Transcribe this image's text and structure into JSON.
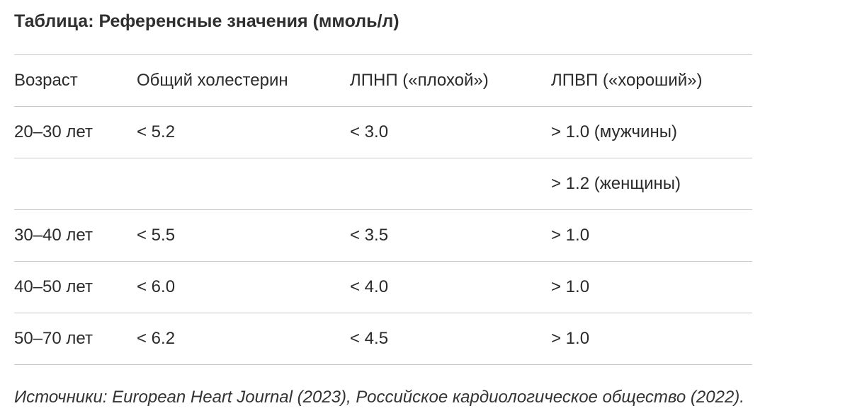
{
  "title": "Таблица: Референсные значения (ммоль/л)",
  "table": {
    "headers": [
      "Возраст",
      "Общий холестерин",
      "ЛПНП («плохой»)",
      "ЛПВП («хороший»)"
    ],
    "rows": [
      [
        "20–30 лет",
        "< 5.2",
        "< 3.0",
        "> 1.0 (мужчины)"
      ],
      [
        "",
        "",
        "",
        "> 1.2 (женщины)"
      ],
      [
        "30–40 лет",
        "< 5.5",
        "< 3.5",
        "> 1.0"
      ],
      [
        "40–50 лет",
        "< 6.0",
        "< 4.0",
        "> 1.0"
      ],
      [
        "50–70 лет",
        "< 6.2",
        "< 4.5",
        "> 1.0"
      ]
    ]
  },
  "source": "Источники: European Heart Journal (2023), Российское кардиологическое общество (2022)."
}
